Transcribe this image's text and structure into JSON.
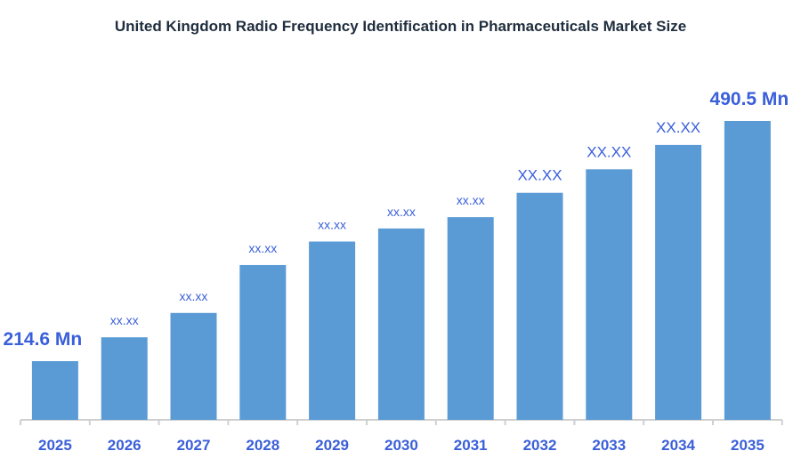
{
  "chart_data": {
    "type": "bar",
    "title": "United Kingdom Radio Frequency Identification in Pharmaceuticals Market Size",
    "categories": [
      "2025",
      "2026",
      "2027",
      "2028",
      "2029",
      "2030",
      "2031",
      "2032",
      "2033",
      "2034",
      "2035"
    ],
    "values": [
      214.6,
      242,
      270,
      325,
      352,
      367,
      380,
      408,
      435,
      463,
      490.5
    ],
    "data_labels": [
      "214.6 Mn",
      "xx.xx",
      "xx.xx",
      "xx.xx",
      "xx.xx",
      "xx.xx",
      "xx.xx",
      "XX.XX",
      "XX.XX",
      "XX.XX",
      "490.5 Mn"
    ],
    "xlabel": "",
    "ylabel": "",
    "ylim": [
      147,
      500
    ],
    "grid": false,
    "legend": "none",
    "colors": {
      "bar": "#5b9bd5",
      "label": "#3a5fd9",
      "title": "#1f2d3d"
    }
  }
}
